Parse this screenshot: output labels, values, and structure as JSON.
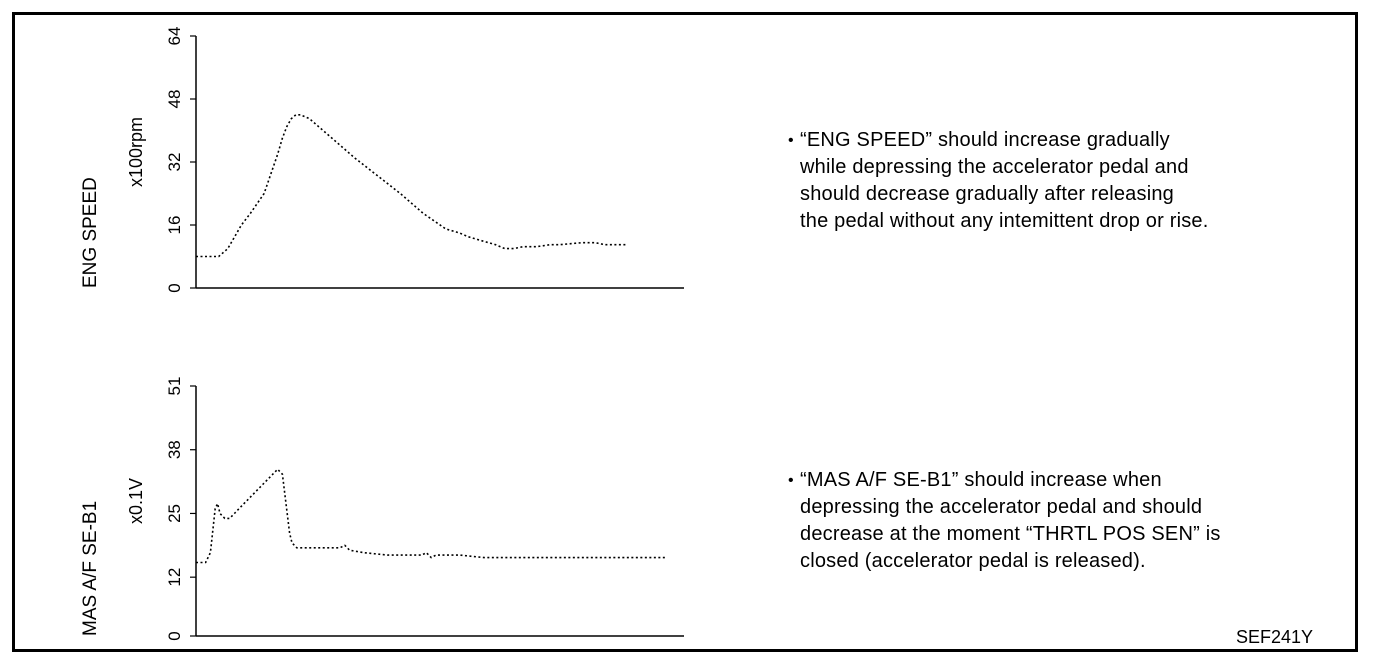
{
  "chart_data": [
    {
      "type": "line",
      "ylabel": "ENG SPEED",
      "yunit": "x100rpm",
      "ylim": [
        0,
        64
      ],
      "yticks": [
        0,
        16,
        32,
        48,
        64
      ],
      "xlim": [
        0,
        100
      ],
      "grid": false,
      "series": [
        {
          "style": "dotted",
          "x": [
            0,
            5,
            7,
            10,
            12,
            15,
            18,
            19,
            20,
            21,
            22,
            23,
            24,
            25,
            27,
            30,
            35,
            40,
            45,
            50,
            55,
            58,
            60,
            63,
            66,
            68,
            70,
            72,
            75,
            78,
            80,
            85,
            88,
            90,
            93,
            95
          ],
          "y": [
            8,
            8,
            10,
            16,
            19,
            24,
            34,
            38,
            41,
            43,
            44,
            44,
            43.5,
            43,
            41,
            38,
            33,
            28.5,
            24,
            19,
            15,
            14,
            13,
            12,
            11,
            10,
            10,
            10.5,
            10.5,
            11,
            11,
            11.5,
            11.5,
            11,
            11,
            11
          ]
        }
      ],
      "annotation": "“ENG SPEED” should increase gradually while depressing the accelerator pedal and should decrease gradually after releasing the pedal without any intemittent drop or rise."
    },
    {
      "type": "line",
      "ylabel": "MAS A/F SE-B1",
      "yunit": "x0.1V",
      "ylim": [
        0,
        51
      ],
      "yticks": [
        0,
        12,
        25,
        38,
        51
      ],
      "xlim": [
        0,
        100
      ],
      "grid": false,
      "series": [
        {
          "style": "dotted",
          "x": [
            0,
            2,
            3,
            4,
            4.5,
            5,
            6,
            7,
            8,
            9,
            10,
            12,
            14,
            15,
            16,
            17,
            18,
            18.5,
            19,
            19.5,
            20,
            21,
            23,
            26,
            30,
            31,
            32,
            35,
            40,
            45,
            47,
            48,
            49,
            50,
            55,
            60,
            70,
            80,
            90,
            98
          ],
          "y": [
            15,
            15,
            17,
            26,
            27,
            25,
            24,
            24,
            25,
            26,
            27,
            29,
            31,
            32,
            33,
            34,
            33,
            29,
            25,
            21,
            19,
            18,
            18,
            18,
            18,
            18.5,
            17.5,
            17,
            16.5,
            16.5,
            16.5,
            17,
            16,
            16.5,
            16.5,
            16,
            16,
            16,
            16,
            16
          ]
        }
      ],
      "annotation": "“MAS A/F SE-B1” should increase when depressing the accelerator pedal and should decrease at the moment “THRTL POS SEN” is closed (accelerator pedal is released)."
    }
  ],
  "notes": [
    {
      "bullet": "•",
      "lines": [
        "“ENG SPEED” should increase gradually",
        "while depressing the accelerator pedal and",
        "should decrease gradually after releasing",
        "the pedal without any intemittent drop or rise."
      ]
    },
    {
      "bullet": "•",
      "lines": [
        "“MAS A/F SE-B1” should increase when",
        "depressing the accelerator pedal and should",
        "decrease at the moment “THRTL POS SEN” is",
        "closed (accelerator pedal is released)."
      ]
    }
  ],
  "figure_code": "SEF241Y"
}
